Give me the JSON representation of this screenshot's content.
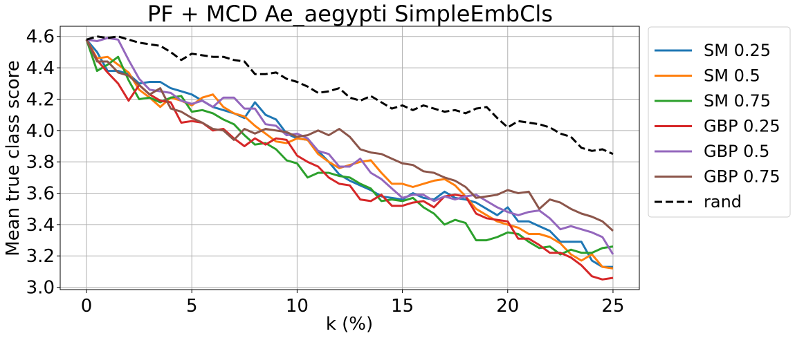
{
  "chart_data": {
    "type": "line",
    "title": "PF + MCD Ae_aegypti SimpleEmbCls",
    "xlabel": "k (%)",
    "ylabel": "Mean true class score",
    "xlim": [
      -1.25,
      26.25
    ],
    "ylim": [
      2.985,
      4.665
    ],
    "xticks": [
      0,
      5,
      10,
      15,
      20,
      25
    ],
    "xtick_labels": [
      "0",
      "5",
      "10",
      "15",
      "20",
      "25"
    ],
    "yticks": [
      3.0,
      3.2,
      3.4,
      3.6,
      3.8,
      4.0,
      4.2,
      4.4,
      4.6
    ],
    "ytick_labels": [
      "3.0",
      "3.2",
      "3.4",
      "3.6",
      "3.8",
      "4.0",
      "4.2",
      "4.4",
      "4.6"
    ],
    "grid": true,
    "legend_position": "outside-right",
    "x": [
      0,
      0.5,
      1,
      1.5,
      2,
      2.5,
      3,
      3.5,
      4,
      4.5,
      5,
      5.5,
      6,
      6.5,
      7,
      7.5,
      8,
      8.5,
      9,
      9.5,
      10,
      10.5,
      11,
      11.5,
      12,
      12.5,
      13,
      13.5,
      14,
      14.5,
      15,
      15.5,
      16,
      16.5,
      17,
      17.5,
      18,
      18.5,
      19,
      19.5,
      20,
      20.5,
      21,
      21.5,
      22,
      22.5,
      23,
      23.5,
      24,
      24.5,
      25
    ],
    "series": [
      {
        "name": "SM 0.25",
        "color": "#1f77b4",
        "style": "solid",
        "values": [
          4.58,
          4.5,
          4.38,
          4.38,
          4.36,
          4.3,
          4.31,
          4.31,
          4.27,
          4.25,
          4.23,
          4.19,
          4.15,
          4.13,
          4.11,
          4.08,
          4.18,
          4.1,
          4.07,
          3.98,
          3.95,
          3.94,
          3.87,
          3.8,
          3.72,
          3.68,
          3.65,
          3.62,
          3.58,
          3.57,
          3.56,
          3.6,
          3.57,
          3.56,
          3.61,
          3.57,
          3.56,
          3.54,
          3.5,
          3.46,
          3.51,
          3.42,
          3.42,
          3.39,
          3.36,
          3.29,
          3.29,
          3.29,
          3.17,
          3.13,
          3.13
        ]
      },
      {
        "name": "SM 0.5",
        "color": "#ff7f0e",
        "style": "solid",
        "values": [
          4.58,
          4.46,
          4.47,
          4.42,
          4.37,
          4.26,
          4.21,
          4.15,
          4.21,
          4.19,
          4.16,
          4.21,
          4.23,
          4.15,
          4.11,
          4.09,
          4.03,
          3.98,
          3.93,
          3.92,
          3.95,
          3.94,
          3.85,
          3.8,
          3.76,
          3.78,
          3.8,
          3.81,
          3.73,
          3.66,
          3.66,
          3.64,
          3.66,
          3.68,
          3.69,
          3.65,
          3.58,
          3.5,
          3.46,
          3.42,
          3.4,
          3.38,
          3.34,
          3.34,
          3.32,
          3.28,
          3.21,
          3.17,
          3.21,
          3.13,
          3.12
        ]
      },
      {
        "name": "SM 0.75",
        "color": "#2ca02c",
        "style": "solid",
        "values": [
          4.58,
          4.38,
          4.42,
          4.47,
          4.32,
          4.2,
          4.21,
          4.18,
          4.21,
          4.22,
          4.12,
          4.13,
          4.11,
          4.07,
          4.04,
          3.97,
          3.91,
          3.92,
          3.88,
          3.81,
          3.79,
          3.7,
          3.73,
          3.73,
          3.71,
          3.7,
          3.66,
          3.63,
          3.55,
          3.56,
          3.55,
          3.57,
          3.51,
          3.47,
          3.4,
          3.43,
          3.41,
          3.3,
          3.3,
          3.32,
          3.35,
          3.34,
          3.29,
          3.25,
          3.26,
          3.21,
          3.24,
          3.22,
          3.22,
          3.25,
          3.26
        ]
      },
      {
        "name": "GBP 0.25",
        "color": "#d62728",
        "style": "solid",
        "values": [
          4.58,
          4.45,
          4.37,
          4.3,
          4.19,
          4.29,
          4.23,
          4.19,
          4.18,
          4.05,
          4.06,
          4.05,
          4.0,
          4.01,
          3.95,
          3.9,
          3.95,
          3.91,
          3.95,
          3.94,
          3.84,
          3.8,
          3.77,
          3.7,
          3.66,
          3.65,
          3.56,
          3.55,
          3.59,
          3.52,
          3.52,
          3.54,
          3.55,
          3.51,
          3.58,
          3.59,
          3.58,
          3.47,
          3.44,
          3.43,
          3.42,
          3.31,
          3.31,
          3.27,
          3.22,
          3.22,
          3.19,
          3.14,
          3.07,
          3.05,
          3.06
        ]
      },
      {
        "name": "GBP 0.5",
        "color": "#9467bd",
        "style": "solid",
        "values": [
          4.58,
          4.57,
          4.59,
          4.58,
          4.45,
          4.33,
          4.26,
          4.25,
          4.24,
          4.19,
          4.17,
          4.19,
          4.15,
          4.21,
          4.21,
          4.14,
          4.14,
          4.04,
          4.03,
          3.97,
          3.98,
          3.95,
          3.87,
          3.85,
          3.77,
          3.77,
          3.82,
          3.73,
          3.69,
          3.63,
          3.57,
          3.59,
          3.59,
          3.55,
          3.58,
          3.56,
          3.58,
          3.59,
          3.55,
          3.51,
          3.48,
          3.46,
          3.48,
          3.49,
          3.44,
          3.37,
          3.39,
          3.37,
          3.35,
          3.32,
          3.21
        ]
      },
      {
        "name": "GBP 0.75",
        "color": "#8c564b",
        "style": "solid",
        "values": [
          4.58,
          4.44,
          4.44,
          4.37,
          4.35,
          4.29,
          4.23,
          4.27,
          4.14,
          4.12,
          4.08,
          4.05,
          4.01,
          4.0,
          3.94,
          4.01,
          3.98,
          4.01,
          4.0,
          3.99,
          3.96,
          3.97,
          4.0,
          3.97,
          4.01,
          3.96,
          3.88,
          3.86,
          3.85,
          3.82,
          3.79,
          3.78,
          3.74,
          3.73,
          3.7,
          3.68,
          3.64,
          3.57,
          3.58,
          3.59,
          3.62,
          3.6,
          3.61,
          3.5,
          3.56,
          3.54,
          3.5,
          3.47,
          3.45,
          3.42,
          3.36
        ]
      },
      {
        "name": "rand",
        "color": "#000000",
        "style": "dashed",
        "values": [
          4.58,
          4.6,
          4.59,
          4.6,
          4.58,
          4.56,
          4.55,
          4.54,
          4.5,
          4.45,
          4.49,
          4.48,
          4.47,
          4.47,
          4.45,
          4.44,
          4.36,
          4.36,
          4.37,
          4.33,
          4.31,
          4.28,
          4.24,
          4.25,
          4.27,
          4.21,
          4.19,
          4.22,
          4.18,
          4.14,
          4.16,
          4.13,
          4.16,
          4.14,
          4.12,
          4.13,
          4.11,
          4.14,
          4.15,
          4.08,
          4.02,
          4.06,
          4.05,
          4.04,
          4.02,
          3.98,
          3.96,
          3.89,
          3.87,
          3.88,
          3.85
        ]
      }
    ]
  }
}
